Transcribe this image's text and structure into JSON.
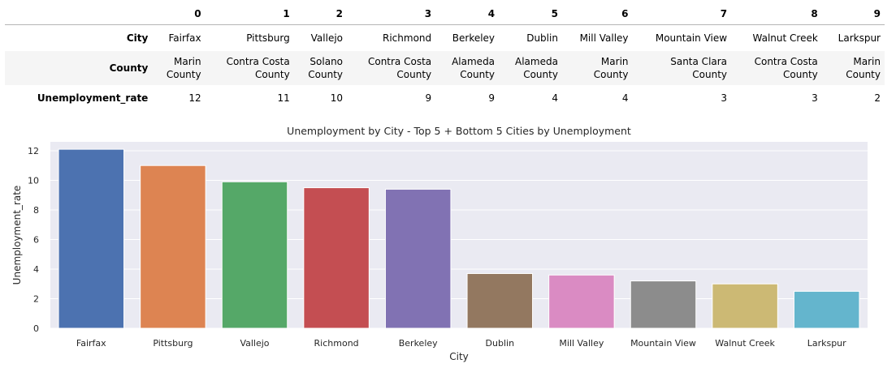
{
  "table": {
    "columns": [
      "0",
      "1",
      "2",
      "3",
      "4",
      "5",
      "6",
      "7",
      "8",
      "9"
    ],
    "rows": [
      {
        "label": "City",
        "cells": [
          [
            "Fairfax"
          ],
          [
            "Pittsburg"
          ],
          [
            "Vallejo"
          ],
          [
            "Richmond"
          ],
          [
            "Berkeley"
          ],
          [
            "Dublin"
          ],
          [
            "Mill Valley"
          ],
          [
            "Mountain View"
          ],
          [
            "Walnut Creek"
          ],
          [
            "Larkspur"
          ]
        ]
      },
      {
        "label": "County",
        "cells": [
          [
            "Marin",
            "County"
          ],
          [
            "Contra Costa",
            "County"
          ],
          [
            "Solano",
            "County"
          ],
          [
            "Contra Costa",
            "County"
          ],
          [
            "Alameda",
            "County"
          ],
          [
            "Alameda",
            "County"
          ],
          [
            "Marin",
            "County"
          ],
          [
            "Santa Clara",
            "County"
          ],
          [
            "Contra Costa",
            "County"
          ],
          [
            "Marin",
            "County"
          ]
        ]
      },
      {
        "label": "Unemployment_rate",
        "cells": [
          [
            "12"
          ],
          [
            "11"
          ],
          [
            "10"
          ],
          [
            "9"
          ],
          [
            "9"
          ],
          [
            "4"
          ],
          [
            "4"
          ],
          [
            "3"
          ],
          [
            "3"
          ],
          [
            "2"
          ]
        ]
      }
    ]
  },
  "chart_data": {
    "type": "bar",
    "title": "Unemployment by City - Top 5 + Bottom 5 Cities by Unemployment",
    "xlabel": "City",
    "ylabel": "Unemployment_rate",
    "categories": [
      "Fairfax",
      "Pittsburg",
      "Vallejo",
      "Richmond",
      "Berkeley",
      "Dublin",
      "Mill Valley",
      "Mountain View",
      "Walnut Creek",
      "Larkspur"
    ],
    "values": [
      12.1,
      11.0,
      9.9,
      9.5,
      9.4,
      3.7,
      3.6,
      3.2,
      3.0,
      2.5
    ],
    "ylim": [
      0,
      12.6
    ],
    "yticks": [
      0,
      2,
      4,
      6,
      8,
      10,
      12
    ],
    "grid": true,
    "colors": [
      "#4c72b0",
      "#dd8452",
      "#55a868",
      "#c44e52",
      "#8172b3",
      "#937860",
      "#da8bc3",
      "#8c8c8c",
      "#ccb974",
      "#64b5cd"
    ],
    "background": "#eaeaf2"
  }
}
